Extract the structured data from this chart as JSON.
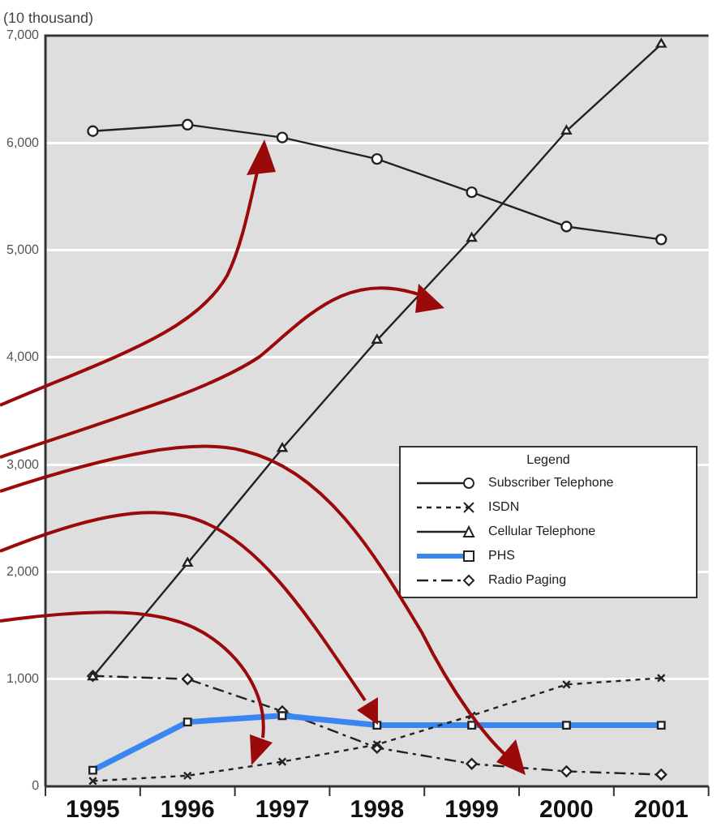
{
  "chart_data": {
    "type": "line",
    "ylabel": "(10 thousand)",
    "legend_title": "Legend",
    "categories": [
      "1995",
      "1996",
      "1997",
      "1998",
      "1999",
      "2000",
      "2001"
    ],
    "ylim": [
      0,
      7000
    ],
    "yticks": [
      {
        "value": 0,
        "label": "0"
      },
      {
        "value": 1000,
        "label": "1,000"
      },
      {
        "value": 2000,
        "label": "2,000"
      },
      {
        "value": 3000,
        "label": "3,000"
      },
      {
        "value": 4000,
        "label": "4,000"
      },
      {
        "value": 5000,
        "label": "5,000"
      },
      {
        "value": 6000,
        "label": "6,000"
      },
      {
        "value": 7000,
        "label": "7,000"
      }
    ],
    "grid": "y",
    "legend": "right",
    "series": [
      {
        "name": "Subscriber Telephone",
        "color": "#222222",
        "marker": "circle",
        "line_style": "solid",
        "values": [
          6110,
          6170,
          6050,
          5850,
          5540,
          5220,
          5100
        ]
      },
      {
        "name": "ISDN",
        "color": "#222222",
        "marker": "cross",
        "line_style": "dotted",
        "values": [
          50,
          100,
          230,
          390,
          660,
          950,
          1010
        ]
      },
      {
        "name": "Cellular Telephone",
        "color": "#222222",
        "marker": "triangle",
        "line_style": "solid",
        "values": [
          1020,
          2080,
          3150,
          4160,
          5110,
          6110,
          6920
        ]
      },
      {
        "name": "PHS",
        "color": "#3a86f0",
        "marker": "square",
        "line_style": "solid",
        "values": [
          150,
          600,
          660,
          570,
          570,
          570,
          570
        ]
      },
      {
        "name": "Radio Paging",
        "color": "#222222",
        "marker": "diamond",
        "line_style": "dashed",
        "values": [
          1030,
          1000,
          700,
          360,
          210,
          140,
          110
        ]
      }
    ]
  }
}
